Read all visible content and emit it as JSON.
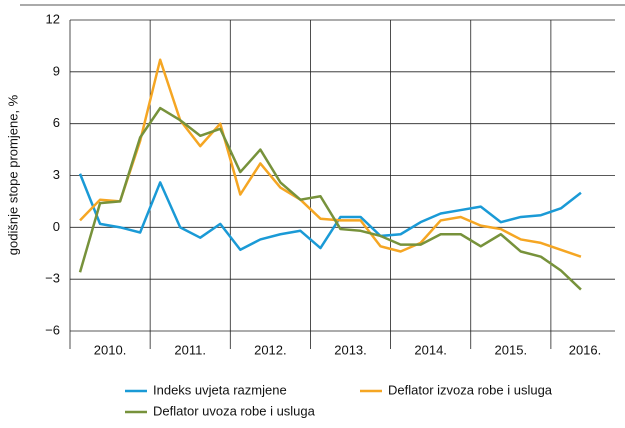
{
  "chart_data": {
    "type": "line",
    "y_label": "godišnje stope promjene, %",
    "x": [
      2010.125,
      2010.375,
      2010.625,
      2010.875,
      2011.125,
      2011.375,
      2011.625,
      2011.875,
      2012.125,
      2012.375,
      2012.625,
      2012.875,
      2013.125,
      2013.375,
      2013.625,
      2013.875,
      2014.125,
      2014.375,
      2014.625,
      2014.875,
      2015.125,
      2015.375,
      2015.625,
      2015.875,
      2016.125,
      2016.375
    ],
    "xlim": [
      2010,
      2016.8
    ],
    "xticks": [
      {
        "value": 2010,
        "label": "2010."
      },
      {
        "value": 2011,
        "label": "2011."
      },
      {
        "value": 2012,
        "label": "2012."
      },
      {
        "value": 2013,
        "label": "2013."
      },
      {
        "value": 2014,
        "label": "2014."
      },
      {
        "value": 2015,
        "label": "2015."
      },
      {
        "value": 2016,
        "label": "2016."
      }
    ],
    "ylim": [
      -6,
      12
    ],
    "yticks": [
      12,
      9,
      6,
      3,
      0,
      {
        "value": -3,
        "label": "−3"
      },
      {
        "value": -6,
        "label": "−6"
      }
    ],
    "grid": true,
    "series": [
      {
        "name": "Indeks uvjeta razmjene",
        "color": "#1a9ad6",
        "values": [
          3.1,
          0.2,
          0.0,
          -0.3,
          2.6,
          0.0,
          -0.6,
          0.2,
          -1.3,
          -0.7,
          -0.4,
          -0.2,
          -1.2,
          0.6,
          0.6,
          -0.5,
          -0.4,
          0.3,
          0.8,
          1.0,
          1.2,
          0.3,
          0.6,
          0.7,
          1.1,
          2.0
        ]
      },
      {
        "name": "Deflator izvoza robe i usluga",
        "color": "#f5a623",
        "values": [
          0.4,
          1.6,
          1.5,
          5.0,
          9.7,
          6.2,
          4.7,
          6.0,
          1.9,
          3.7,
          2.3,
          1.6,
          0.5,
          0.4,
          0.4,
          -1.1,
          -1.4,
          -0.9,
          0.4,
          0.6,
          0.1,
          -0.1,
          -0.7,
          -0.9,
          -1.3,
          -1.7
        ]
      },
      {
        "name": "Deflator uvoza robe i usluga",
        "color": "#77923b",
        "values": [
          -2.6,
          1.4,
          1.5,
          5.2,
          6.9,
          6.2,
          5.3,
          5.7,
          3.2,
          4.5,
          2.6,
          1.6,
          1.8,
          -0.1,
          -0.2,
          -0.5,
          -1.0,
          -1.0,
          -0.4,
          -0.4,
          -1.1,
          -0.4,
          -1.4,
          -1.7,
          -2.5,
          -3.6
        ]
      }
    ]
  }
}
